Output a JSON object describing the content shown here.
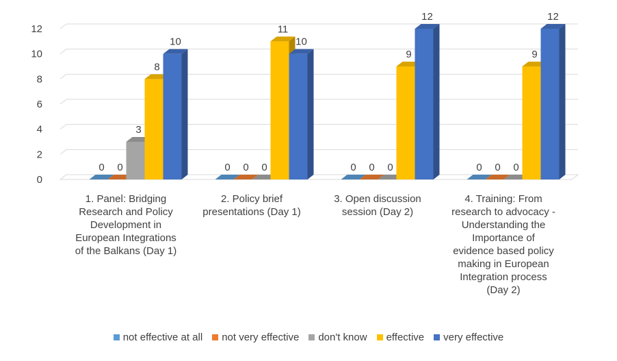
{
  "chart_data": {
    "type": "bar",
    "title": "",
    "xlabel": "",
    "ylabel": "",
    "ylim": [
      0,
      12
    ],
    "yticks": [
      0,
      2,
      4,
      6,
      8,
      10,
      12
    ],
    "grid": true,
    "legend_position": "bottom",
    "categories": [
      "1. Panel: Bridging Research and Policy Development in European Integrations of the Balkans (Day 1)",
      "2. Policy brief presentations (Day 1)",
      "3. Open discussion session (Day 2)",
      "4. Training: From research to advocacy - Understanding the Importance of evidence based policy making in European Integration process (Day 2)"
    ],
    "category_lines": [
      [
        "1. Panel: Bridging",
        "Research and Policy",
        "Development in",
        "European Integrations",
        "of the Balkans (Day 1)"
      ],
      [
        "2. Policy brief",
        "presentations (Day 1)"
      ],
      [
        "3. Open discussion",
        "session (Day 2)"
      ],
      [
        "4. Training: From",
        "research to advocacy -",
        "Understanding the",
        "Importance of",
        "evidence based policy",
        "making in European",
        "Integration process",
        "(Day 2)"
      ]
    ],
    "series": [
      {
        "name": "not effective at all",
        "color": "#5B9BD5",
        "values": [
          0,
          0,
          0,
          0
        ]
      },
      {
        "name": "not very effective",
        "color": "#ED7D31",
        "values": [
          0,
          0,
          0,
          0
        ]
      },
      {
        "name": "don't know",
        "color": "#A5A5A5",
        "values": [
          3,
          0,
          0,
          0
        ]
      },
      {
        "name": "effective",
        "color": "#FFC000",
        "values": [
          8,
          11,
          9,
          9
        ]
      },
      {
        "name": "very effective",
        "color": "#4472C4",
        "values": [
          10,
          10,
          12,
          12
        ]
      }
    ]
  }
}
